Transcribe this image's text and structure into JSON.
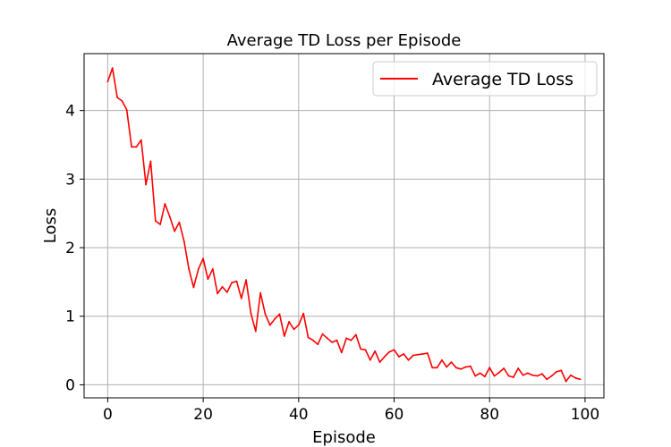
{
  "chart_data": {
    "type": "line",
    "title": "Average TD Loss per Episode",
    "xlabel": "Episode",
    "ylabel": "Loss",
    "xlim": [
      -4.95,
      103.95
    ],
    "ylim": [
      -0.19,
      4.83
    ],
    "xticks": [
      0,
      20,
      40,
      60,
      80,
      100
    ],
    "yticks": [
      0,
      1,
      2,
      3,
      4
    ],
    "grid": true,
    "legend_position": "top-right",
    "series": [
      {
        "name": "Average TD Loss",
        "color": "#ff0000",
        "x": [
          0,
          1,
          2,
          3,
          4,
          5,
          6,
          7,
          8,
          9,
          10,
          11,
          12,
          13,
          14,
          15,
          16,
          17,
          18,
          19,
          20,
          21,
          22,
          23,
          24,
          25,
          26,
          27,
          28,
          29,
          30,
          31,
          32,
          33,
          34,
          35,
          36,
          37,
          38,
          39,
          40,
          41,
          42,
          43,
          44,
          45,
          46,
          47,
          48,
          49,
          50,
          51,
          52,
          53,
          54,
          55,
          56,
          57,
          58,
          59,
          60,
          61,
          62,
          63,
          64,
          65,
          66,
          67,
          68,
          69,
          70,
          71,
          72,
          73,
          74,
          75,
          76,
          77,
          78,
          79,
          80,
          81,
          82,
          83,
          84,
          85,
          86,
          87,
          88,
          89,
          90,
          91,
          92,
          93,
          94,
          95,
          96,
          97,
          98,
          99
        ],
        "values": [
          4.42,
          4.62,
          4.19,
          4.14,
          4.01,
          3.47,
          3.47,
          3.57,
          2.92,
          3.26,
          2.39,
          2.34,
          2.64,
          2.45,
          2.24,
          2.37,
          2.09,
          1.69,
          1.42,
          1.69,
          1.84,
          1.54,
          1.69,
          1.33,
          1.43,
          1.35,
          1.49,
          1.51,
          1.26,
          1.53,
          1.04,
          0.78,
          1.34,
          1.03,
          0.87,
          0.96,
          1.03,
          0.71,
          0.92,
          0.81,
          0.87,
          1.04,
          0.69,
          0.65,
          0.59,
          0.74,
          0.68,
          0.62,
          0.65,
          0.47,
          0.68,
          0.65,
          0.73,
          0.52,
          0.51,
          0.36,
          0.49,
          0.33,
          0.41,
          0.48,
          0.51,
          0.41,
          0.45,
          0.36,
          0.43,
          0.44,
          0.45,
          0.46,
          0.25,
          0.25,
          0.36,
          0.26,
          0.33,
          0.25,
          0.23,
          0.26,
          0.27,
          0.13,
          0.17,
          0.12,
          0.25,
          0.13,
          0.18,
          0.24,
          0.13,
          0.11,
          0.24,
          0.14,
          0.17,
          0.14,
          0.13,
          0.16,
          0.08,
          0.13,
          0.19,
          0.21,
          0.05,
          0.14,
          0.1,
          0.08
        ]
      }
    ]
  }
}
